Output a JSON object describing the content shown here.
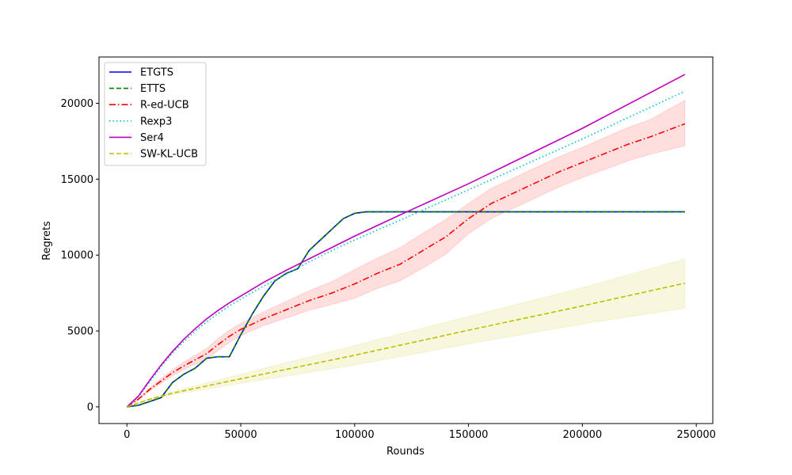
{
  "chart_data": {
    "type": "line",
    "xlabel": "Rounds",
    "ylabel": "Regrets",
    "xlim": [
      -12250,
      257250
    ],
    "ylim": [
      -1100,
      23050
    ],
    "xticks": [
      0,
      50000,
      100000,
      150000,
      200000,
      250000
    ],
    "yticks": [
      0,
      5000,
      10000,
      15000,
      20000
    ],
    "legend_position": "upper-left",
    "grid": false,
    "series": [
      {
        "name": "ETGTS",
        "color": "#0000ff",
        "style": "solid",
        "width": 1.6,
        "x": [
          0,
          5000,
          10000,
          15000,
          20000,
          25000,
          30000,
          35000,
          40000,
          45000,
          50000,
          55000,
          60000,
          65000,
          70000,
          75000,
          80000,
          85000,
          90000,
          95000,
          100000,
          105000,
          110000,
          120000,
          150000,
          200000,
          245000
        ],
        "y": [
          0,
          100,
          350,
          600,
          1600,
          2150,
          2550,
          3200,
          3300,
          3300,
          4750,
          6100,
          7300,
          8300,
          8800,
          9100,
          10300,
          11000,
          11700,
          12400,
          12750,
          12850,
          12850,
          12850,
          12850,
          12850,
          12850
        ]
      },
      {
        "name": "ETTS",
        "color": "#008000",
        "style": "dashed",
        "width": 1.6,
        "x": [
          0,
          5000,
          10000,
          15000,
          20000,
          25000,
          30000,
          35000,
          40000,
          45000,
          50000,
          55000,
          60000,
          65000,
          70000,
          75000,
          80000,
          85000,
          90000,
          95000,
          100000,
          105000,
          110000,
          120000,
          150000,
          200000,
          245000
        ],
        "y": [
          0,
          100,
          350,
          600,
          1600,
          2150,
          2550,
          3200,
          3300,
          3300,
          4750,
          6100,
          7300,
          8300,
          8800,
          9100,
          10300,
          11000,
          11700,
          12400,
          12750,
          12850,
          12850,
          12850,
          12850,
          12850,
          12850
        ]
      },
      {
        "name": "R-ed-UCB",
        "color": "#ff0000",
        "style": "dashdot",
        "width": 1.6,
        "x": [
          0,
          5000,
          10000,
          15000,
          20000,
          25000,
          30000,
          35000,
          40000,
          45000,
          50000,
          60000,
          70000,
          80000,
          90000,
          100000,
          110000,
          120000,
          130000,
          140000,
          150000,
          160000,
          170000,
          180000,
          190000,
          200000,
          210000,
          220000,
          230000,
          245000
        ],
        "y": [
          0,
          500,
          1150,
          1700,
          2250,
          2700,
          3100,
          3500,
          4100,
          4650,
          5100,
          5800,
          6400,
          7000,
          7500,
          8100,
          8800,
          9400,
          10300,
          11200,
          12400,
          13400,
          14100,
          14800,
          15500,
          16100,
          16700,
          17300,
          17800,
          18650
        ],
        "upper": [
          0,
          550,
          1250,
          1850,
          2450,
          2950,
          3400,
          3850,
          4500,
          5050,
          5500,
          6250,
          6950,
          7650,
          8250,
          9050,
          9800,
          10500,
          11450,
          12350,
          13400,
          14400,
          15100,
          15800,
          16500,
          17100,
          17750,
          18400,
          18950,
          20200
        ],
        "lower": [
          0,
          450,
          1050,
          1550,
          2050,
          2450,
          2800,
          3150,
          3700,
          4250,
          4700,
          5350,
          5850,
          6350,
          6750,
          7150,
          7800,
          8300,
          9150,
          10050,
          11400,
          12400,
          13100,
          13800,
          14500,
          15100,
          15650,
          16200,
          16650,
          17200
        ],
        "band_color": "#ff0000"
      },
      {
        "name": "Rexp3",
        "color": "#00bfbf",
        "style": "dotted",
        "width": 1.6,
        "x": [
          0,
          5000,
          10000,
          15000,
          20000,
          25000,
          30000,
          35000,
          40000,
          45000,
          50000,
          60000,
          70000,
          80000,
          90000,
          100000,
          120000,
          150000,
          200000,
          245000
        ],
        "y": [
          0,
          650,
          1650,
          2650,
          3550,
          4300,
          5000,
          5600,
          6150,
          6650,
          7100,
          7950,
          8750,
          9550,
          10300,
          11000,
          12300,
          14300,
          17650,
          20800
        ]
      },
      {
        "name": "Ser4",
        "color": "#bf00bf",
        "style": "solid",
        "width": 1.6,
        "x": [
          0,
          5000,
          10000,
          15000,
          20000,
          25000,
          30000,
          35000,
          40000,
          45000,
          50000,
          60000,
          70000,
          80000,
          90000,
          100000,
          120000,
          150000,
          200000,
          245000
        ],
        "y": [
          0,
          700,
          1750,
          2750,
          3650,
          4450,
          5150,
          5800,
          6350,
          6850,
          7300,
          8200,
          9000,
          9750,
          10500,
          11250,
          12650,
          14700,
          18350,
          21900
        ]
      },
      {
        "name": "SW-KL-UCB",
        "color": "#bfbf00",
        "style": "dashed",
        "width": 1.6,
        "x": [
          0,
          10000,
          20000,
          50000,
          100000,
          150000,
          200000,
          245000
        ],
        "y": [
          0,
          500,
          900,
          1850,
          3400,
          5050,
          6650,
          8150
        ],
        "upper": [
          0,
          560,
          1000,
          2150,
          4050,
          5950,
          7850,
          9750
        ],
        "lower": [
          0,
          440,
          800,
          1550,
          2750,
          4150,
          5450,
          6500
        ],
        "band_color": "#bfbf00"
      }
    ]
  }
}
